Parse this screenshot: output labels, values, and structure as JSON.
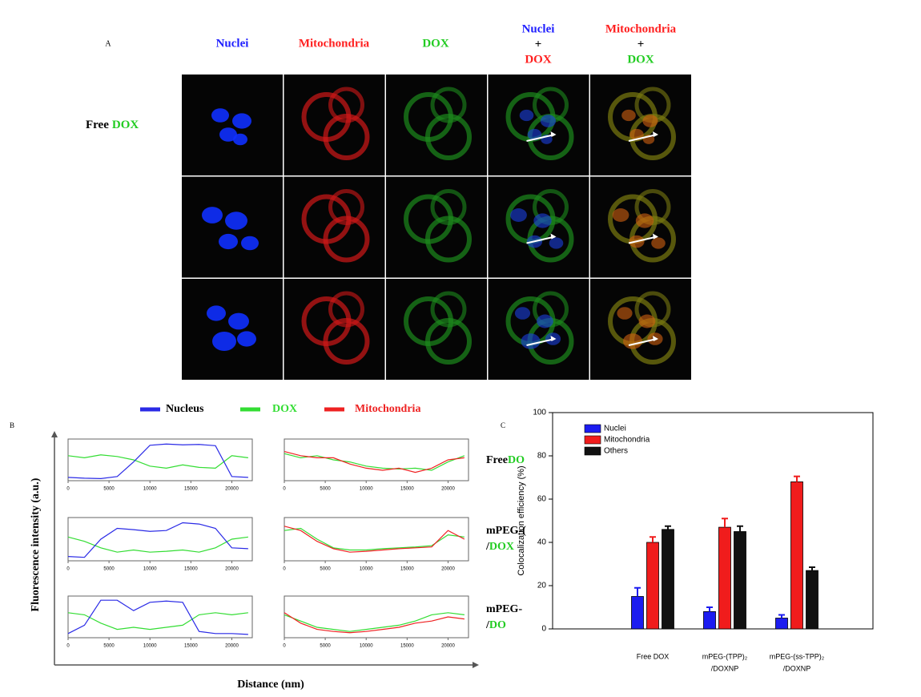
{
  "figure_a": {
    "label": "A",
    "columns": [
      [
        {
          "text": "Nuclei",
          "color": "#2020ff"
        }
      ],
      [
        {
          "text": "Mitochondria",
          "color": "#ff2020"
        }
      ],
      [
        {
          "text": "DOX",
          "color": "#22cc22"
        }
      ],
      [
        {
          "text": "Nuclei",
          "color": "#2020ff"
        },
        {
          "text": "+",
          "color": "#000000"
        },
        {
          "text": "DOX",
          "color": "#ff2020"
        }
      ],
      [
        {
          "text": "Mitochondria",
          "color": "#ff2020"
        },
        {
          "text": "+",
          "color": "#000000"
        },
        {
          "text": "DOX",
          "color": "#22cc22"
        }
      ]
    ],
    "row_label": [
      {
        "text": "Free",
        "color": "#000000"
      },
      {
        "text": "DOX",
        "color": "#22cc22"
      }
    ]
  },
  "figure_b": {
    "label": "B",
    "legend": [
      {
        "name": "Nucleus",
        "color": "#2a2ae6"
      },
      {
        "name": "DOX",
        "color": "#33dd33"
      },
      {
        "name": "Mitochondria",
        "color": "#ee2222"
      }
    ],
    "ylabel": "Fluorescence intensity (a.u.)",
    "xlabel": "Distance (nm)",
    "row_labels": [
      [
        [
          {
            "text": "Free",
            "color": "#000000"
          },
          {
            "text": "DO",
            "color": "#22cc22"
          }
        ]
      ],
      [
        [
          {
            "text": "mPEG-(",
            "color": "#000000"
          }
        ],
        [
          {
            "text": "/",
            "color": "#000000"
          },
          {
            "text": "DOX",
            "color": "#22cc22"
          }
        ]
      ],
      [
        [
          {
            "text": "mPEG-",
            "color": "#000000"
          }
        ],
        [
          {
            "text": "/",
            "color": "#000000"
          },
          {
            "text": "DO",
            "color": "#22cc22"
          }
        ]
      ]
    ]
  },
  "figure_c": {
    "label": "C"
  },
  "chart_data": [
    {
      "type": "line",
      "x": [
        0,
        2000,
        4000,
        6000,
        8000,
        10000,
        12000,
        14000,
        16000,
        18000,
        20000,
        22000
      ],
      "xlim": [
        0,
        22500
      ],
      "ylim": [
        0,
        100
      ],
      "xticks": [
        0,
        5000,
        10000,
        15000,
        20000
      ],
      "series": [
        {
          "color": "#33dd33",
          "values": [
            60,
            55,
            62,
            58,
            50,
            35,
            30,
            38,
            32,
            30,
            60,
            55
          ]
        },
        {
          "color": "#2a2ae6",
          "values": [
            8,
            6,
            5,
            10,
            45,
            85,
            88,
            86,
            87,
            84,
            10,
            8
          ]
        }
      ]
    },
    {
      "type": "line",
      "x": [
        0,
        2000,
        4000,
        6000,
        8000,
        10000,
        12000,
        14000,
        16000,
        18000,
        20000,
        22000
      ],
      "xlim": [
        0,
        22500
      ],
      "ylim": [
        0,
        100
      ],
      "xticks": [
        0,
        5000,
        10000,
        15000,
        20000
      ],
      "series": [
        {
          "color": "#33dd33",
          "values": [
            65,
            55,
            60,
            50,
            45,
            35,
            30,
            28,
            30,
            25,
            45,
            60
          ]
        },
        {
          "color": "#ee2222",
          "values": [
            70,
            60,
            55,
            55,
            40,
            30,
            25,
            30,
            20,
            30,
            50,
            55
          ]
        }
      ]
    },
    {
      "type": "line",
      "x": [
        0,
        2000,
        4000,
        6000,
        8000,
        10000,
        12000,
        14000,
        16000,
        18000,
        20000,
        22000
      ],
      "xlim": [
        0,
        22500
      ],
      "ylim": [
        0,
        100
      ],
      "xticks": [
        0,
        5000,
        10000,
        15000,
        20000
      ],
      "series": [
        {
          "color": "#33dd33",
          "values": [
            55,
            45,
            30,
            20,
            25,
            20,
            22,
            25,
            20,
            30,
            50,
            55
          ]
        },
        {
          "color": "#2a2ae6",
          "values": [
            10,
            8,
            50,
            75,
            72,
            68,
            70,
            88,
            85,
            75,
            30,
            28
          ]
        }
      ]
    },
    {
      "type": "line",
      "x": [
        0,
        2000,
        4000,
        6000,
        8000,
        10000,
        12000,
        14000,
        16000,
        18000,
        20000,
        22000
      ],
      "xlim": [
        0,
        22500
      ],
      "ylim": [
        0,
        100
      ],
      "xticks": [
        0,
        5000,
        10000,
        15000,
        20000
      ],
      "series": [
        {
          "color": "#33dd33",
          "values": [
            70,
            75,
            50,
            30,
            25,
            25,
            28,
            30,
            32,
            35,
            60,
            55
          ]
        },
        {
          "color": "#ee2222",
          "values": [
            80,
            70,
            45,
            28,
            20,
            22,
            25,
            28,
            30,
            32,
            70,
            50
          ]
        }
      ]
    },
    {
      "type": "line",
      "x": [
        0,
        2000,
        4000,
        6000,
        8000,
        10000,
        12000,
        14000,
        16000,
        18000,
        20000,
        22000
      ],
      "xlim": [
        0,
        22500
      ],
      "ylim": [
        0,
        100
      ],
      "xticks": [
        0,
        5000,
        10000,
        15000,
        20000
      ],
      "series": [
        {
          "color": "#33dd33",
          "values": [
            60,
            55,
            35,
            20,
            25,
            20,
            25,
            30,
            55,
            60,
            55,
            60
          ]
        },
        {
          "color": "#2a2ae6",
          "values": [
            10,
            30,
            90,
            90,
            65,
            85,
            88,
            85,
            15,
            10,
            10,
            8
          ]
        }
      ]
    },
    {
      "type": "line",
      "x": [
        0,
        2000,
        4000,
        6000,
        8000,
        10000,
        12000,
        14000,
        16000,
        18000,
        20000,
        22000
      ],
      "xlim": [
        0,
        22500
      ],
      "ylim": [
        0,
        100
      ],
      "xticks": [
        0,
        5000,
        10000,
        15000,
        20000
      ],
      "series": [
        {
          "color": "#33dd33",
          "values": [
            55,
            40,
            25,
            20,
            15,
            20,
            25,
            30,
            40,
            55,
            60,
            55
          ]
        },
        {
          "color": "#ee2222",
          "values": [
            60,
            35,
            20,
            15,
            12,
            15,
            20,
            25,
            35,
            40,
            50,
            45
          ]
        }
      ]
    },
    {
      "type": "bar",
      "ylabel": "Colocalization efficiency (%)",
      "categories": [
        [
          "Free DOX"
        ],
        [
          "mPEG-(TPP)₂",
          "/DOXNP"
        ],
        [
          "mPEG-(ss-TPP)₂",
          "/DOXNP"
        ]
      ],
      "ylim": [
        0,
        100
      ],
      "yticks": [
        0,
        20,
        40,
        60,
        80,
        100
      ],
      "legend": "upper-left",
      "series": [
        {
          "name": "Nuclei",
          "color": "#1c1cf0",
          "values": [
            15,
            8,
            5
          ],
          "errors": [
            4,
            2,
            1.5
          ]
        },
        {
          "name": "Mitochondria",
          "color": "#f01c1c",
          "values": [
            40,
            47,
            68
          ],
          "errors": [
            2.5,
            4,
            2.5
          ]
        },
        {
          "name": "Others",
          "color": "#111111",
          "values": [
            46,
            45,
            27
          ],
          "errors": [
            1.5,
            2.5,
            1.5
          ]
        }
      ]
    }
  ]
}
